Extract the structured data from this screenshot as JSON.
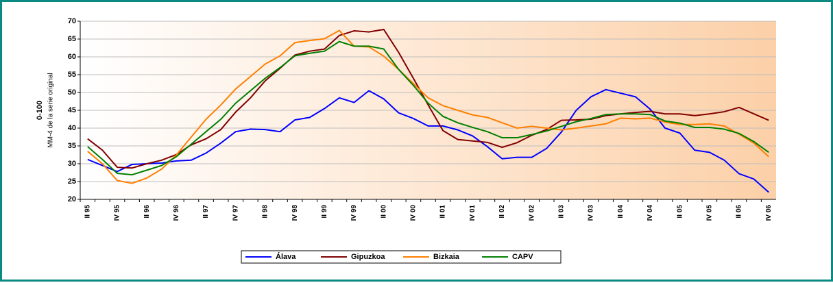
{
  "chart_data": {
    "type": "line",
    "y_label_main": "0-100",
    "y_label_sub": "MM-4 de la serie original",
    "categories": [
      "II 95",
      null,
      "IV 95",
      null,
      "II 96",
      null,
      "IV 96",
      null,
      "II 97",
      null,
      "IV 97",
      null,
      "II 98",
      null,
      "IV 98",
      null,
      "II 99",
      null,
      "IV 99",
      null,
      "II 00",
      null,
      "IV 00",
      null,
      "II 01",
      null,
      "IV 01",
      null,
      "II 02",
      null,
      "IV 02",
      null,
      "II 03",
      null,
      "IV 03",
      null,
      "II 04",
      null,
      "IV 04",
      null,
      "II 05",
      null,
      "IV 05",
      null,
      "II 06",
      null,
      "IV 06"
    ],
    "series": [
      {
        "name": "Álava",
        "color": "#0000ff",
        "values": [
          31.2,
          29.5,
          27.8,
          29.8,
          30,
          30.2,
          30.8,
          31,
          33,
          35.8,
          39,
          39.7,
          39.6,
          39,
          42.3,
          43,
          45.5,
          48.5,
          47.2,
          50.5,
          48.2,
          44.3,
          42.7,
          40.6,
          40.6,
          39.5,
          37.8,
          34.8,
          31.4,
          31.8,
          31.8,
          34.3,
          38.9,
          45,
          48.8,
          50.8,
          49.8,
          48.8,
          45.3,
          40,
          38.6,
          33.8,
          33.2,
          31,
          27.2,
          25.7,
          22
        ]
      },
      {
        "name": "Gipuzkoa",
        "color": "#800000",
        "values": [
          37,
          33.8,
          29,
          28.8,
          30,
          31,
          32.6,
          35.3,
          37,
          39.6,
          44.5,
          48.5,
          53.3,
          56.8,
          60.5,
          61.6,
          62.2,
          66,
          67.3,
          67,
          67.7,
          61.3,
          54,
          46.5,
          39.3,
          36.8,
          36.4,
          36,
          34.6,
          35.9,
          38,
          39.6,
          42.2,
          42.3,
          42.5,
          43.5,
          44,
          44.4,
          44.7,
          44,
          44,
          43.5,
          44,
          44.6,
          45.8,
          44,
          42.2
        ]
      },
      {
        "name": "Bizkaia",
        "color": "#ff7f00",
        "values": [
          33.5,
          30,
          25.3,
          24.5,
          26,
          28.5,
          32.5,
          37.5,
          42.5,
          46.5,
          51,
          54.5,
          58,
          60.3,
          64,
          64.6,
          65.1,
          67.4,
          63,
          62.8,
          60.2,
          56.5,
          52.5,
          48.5,
          46.3,
          45,
          43.7,
          43,
          41.5,
          40,
          40.5,
          40,
          39.5,
          40,
          40.6,
          41.2,
          42.8,
          42.6,
          42.8,
          41.7,
          41,
          41,
          41.2,
          40.6,
          38.3,
          35.8,
          32
        ]
      },
      {
        "name": "CAPV",
        "color": "#008000",
        "values": [
          34.8,
          31.2,
          27.3,
          26.9,
          28.2,
          29.5,
          32,
          35.5,
          39,
          42.5,
          47,
          50.5,
          54,
          57,
          60.3,
          61,
          61.6,
          64.3,
          63,
          63,
          62.2,
          56.5,
          52,
          47,
          43.3,
          41.5,
          40.2,
          39,
          37.3,
          37.3,
          38.2,
          39.2,
          40.5,
          41.8,
          42.7,
          43.8,
          44,
          44,
          43.8,
          42,
          41.4,
          40.2,
          40.2,
          39.7,
          38.5,
          36.2,
          33.2
        ]
      }
    ],
    "ylim": [
      20,
      70
    ],
    "yticks": [
      20,
      25,
      30,
      35,
      40,
      45,
      50,
      55,
      60,
      65,
      70
    ],
    "grid": true,
    "legend": "bottom"
  }
}
